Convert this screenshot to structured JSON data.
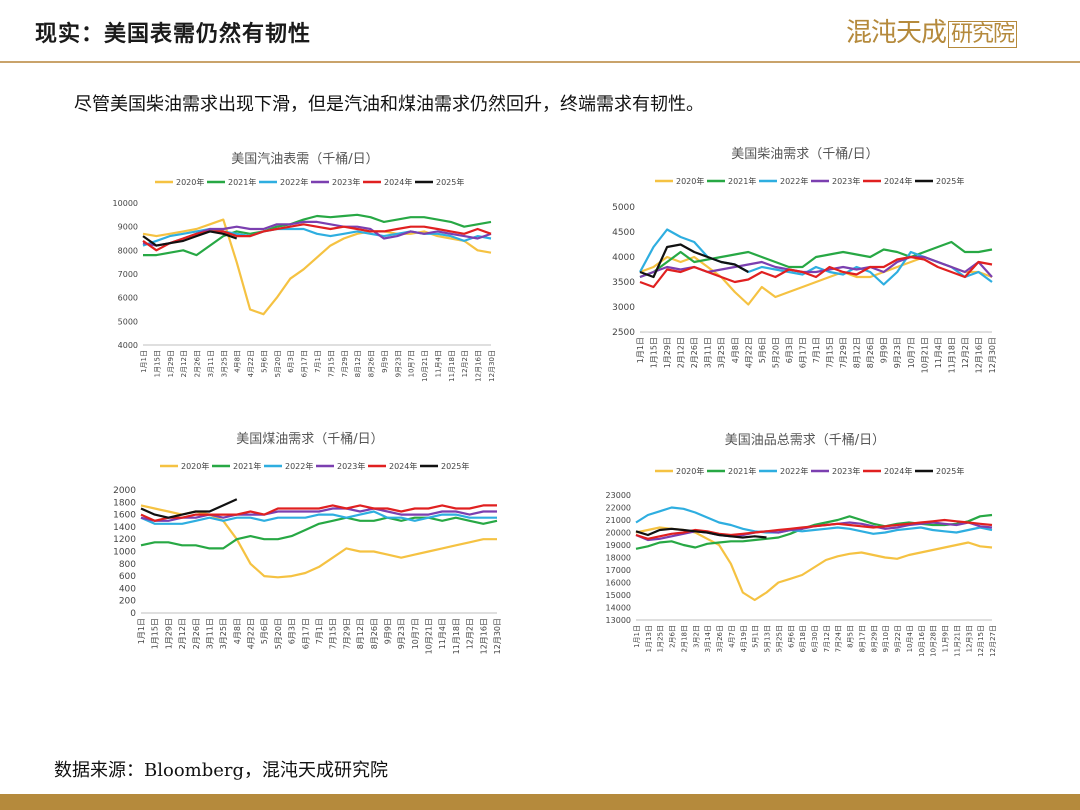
{
  "header": {
    "title": "现实：美国表需仍然有韧性"
  },
  "logo": {
    "text": "混沌天成",
    "boxed": "研究院"
  },
  "summary": "尽管美国柴油需求出现下滑，但是汽油和煤油需求仍然回升，终端需求有韧性。",
  "source": "数据来源：Bloomberg，混沌天成研究院",
  "colors": {
    "accent": "#b58a3c",
    "rule": "#c9a36b"
  },
  "chart_data": [
    {
      "type": "line",
      "title": "美国汽油表需（千桶/日）",
      "ylim": [
        4000,
        10000
      ],
      "yticks": [
        4000,
        5000,
        6000,
        7000,
        8000,
        9000,
        10000
      ],
      "xticks": [
        "1月1日",
        "1月15日",
        "1月29日",
        "2月12日",
        "2月26日",
        "3月11日",
        "3月25日",
        "4月8日",
        "4月22日",
        "5月6日",
        "5月20日",
        "6月3日",
        "6月17日",
        "7月1日",
        "7月15日",
        "7月29日",
        "8月12日",
        "8月26日",
        "9月9日",
        "9月23日",
        "10月7日",
        "10月21日",
        "11月4日",
        "11月18日",
        "12月2日",
        "12月16日",
        "12月30日"
      ],
      "series": [
        {
          "name": "2020年",
          "color": "#f5c242",
          "values": [
            8700,
            8600,
            8700,
            8800,
            8900,
            9100,
            9300,
            7500,
            5500,
            5300,
            6000,
            6800,
            7200,
            7700,
            8200,
            8500,
            8700,
            8800,
            8800,
            8700,
            8700,
            8800,
            8600,
            8500,
            8400,
            8000,
            7900
          ]
        },
        {
          "name": "2021年",
          "color": "#27a844",
          "values": [
            7800,
            7800,
            7900,
            8000,
            7800,
            8200,
            8600,
            8800,
            8700,
            8800,
            9000,
            9100,
            9300,
            9450,
            9400,
            9450,
            9500,
            9400,
            9200,
            9300,
            9400,
            9400,
            9300,
            9200,
            9000,
            9100,
            9200
          ]
        },
        {
          "name": "2022年",
          "color": "#2eaee0",
          "values": [
            8200,
            8400,
            8600,
            8700,
            8800,
            8900,
            8800,
            8700,
            8600,
            8800,
            8900,
            8900,
            8900,
            8700,
            8600,
            8700,
            8800,
            8700,
            8600,
            8700,
            8800,
            8700,
            8700,
            8600,
            8400,
            8600,
            8500
          ]
        },
        {
          "name": "2023年",
          "color": "#7b3fb0",
          "values": [
            8300,
            8200,
            8300,
            8500,
            8700,
            8900,
            8900,
            9000,
            8900,
            8900,
            9100,
            9100,
            9200,
            9200,
            9100,
            9000,
            9000,
            8900,
            8500,
            8600,
            8800,
            8700,
            8800,
            8700,
            8600,
            8500,
            8700
          ]
        },
        {
          "name": "2024年",
          "color": "#e02020",
          "values": [
            8400,
            8000,
            8300,
            8500,
            8700,
            8800,
            8800,
            8600,
            8600,
            8800,
            8900,
            9000,
            9100,
            9000,
            8900,
            9000,
            8900,
            8800,
            8800,
            8900,
            9000,
            9000,
            8900,
            8800,
            8700,
            8900,
            8700
          ]
        },
        {
          "name": "2025年",
          "color": "#111111",
          "values": [
            8600,
            8200,
            8300,
            8400,
            8600,
            8800,
            8700,
            8500
          ]
        }
      ]
    },
    {
      "type": "line",
      "title": "美国柴油需求（千桶/日）",
      "ylim": [
        2500,
        5000
      ],
      "yticks": [
        2500,
        3000,
        3500,
        4000,
        4500,
        5000
      ],
      "xticks": [
        "1月1日",
        "1月15日",
        "1月29日",
        "2月12日",
        "2月26日",
        "3月11日",
        "3月25日",
        "4月8日",
        "4月22日",
        "5月6日",
        "5月20日",
        "6月3日",
        "6月17日",
        "7月1日",
        "7月15日",
        "7月29日",
        "8月12日",
        "8月26日",
        "9月9日",
        "9月23日",
        "10月7日",
        "10月21日",
        "11月4日",
        "11月18日",
        "12月2日",
        "12月16日",
        "12月30日"
      ],
      "series": [
        {
          "name": "2020年",
          "color": "#f5c242",
          "values": [
            3700,
            3800,
            4000,
            3900,
            4000,
            3800,
            3600,
            3300,
            3050,
            3400,
            3200,
            3300,
            3400,
            3500,
            3600,
            3700,
            3600,
            3600,
            3700,
            3800,
            3900,
            4000,
            3900,
            3800,
            3700,
            3700,
            3600
          ]
        },
        {
          "name": "2021年",
          "color": "#27a844",
          "values": [
            3600,
            3700,
            3900,
            4100,
            3900,
            3950,
            4000,
            4050,
            4100,
            4000,
            3900,
            3800,
            3800,
            4000,
            4050,
            4100,
            4050,
            4000,
            4150,
            4100,
            4000,
            4100,
            4200,
            4300,
            4100,
            4100,
            4150
          ]
        },
        {
          "name": "2022年",
          "color": "#2eaee0",
          "values": [
            3700,
            4200,
            4550,
            4400,
            4300,
            4000,
            3900,
            3850,
            3700,
            3800,
            3750,
            3700,
            3650,
            3800,
            3700,
            3650,
            3800,
            3700,
            3450,
            3700,
            4100,
            4000,
            3900,
            3800,
            3600,
            3700,
            3500
          ]
        },
        {
          "name": "2023年",
          "color": "#7b3fb0",
          "values": [
            3600,
            3700,
            3800,
            3750,
            3800,
            3700,
            3750,
            3800,
            3850,
            3900,
            3800,
            3750,
            3700,
            3700,
            3750,
            3800,
            3750,
            3800,
            3700,
            3900,
            4000,
            4000,
            3900,
            3800,
            3700,
            3900,
            3600
          ]
        },
        {
          "name": "2024年",
          "color": "#e02020",
          "values": [
            3500,
            3400,
            3750,
            3700,
            3800,
            3700,
            3600,
            3500,
            3550,
            3700,
            3600,
            3750,
            3700,
            3600,
            3800,
            3700,
            3650,
            3800,
            3800,
            3950,
            4000,
            3950,
            3800,
            3700,
            3600,
            3900,
            3850
          ]
        },
        {
          "name": "2025年",
          "color": "#111111",
          "values": [
            3700,
            3600,
            4200,
            4250,
            4100,
            4000,
            3900,
            3850,
            3700
          ]
        }
      ]
    },
    {
      "type": "line",
      "title": "美国煤油需求（千桶/日）",
      "ylim": [
        0,
        2000
      ],
      "yticks": [
        0,
        200,
        400,
        600,
        800,
        1000,
        1200,
        1400,
        1600,
        1800,
        2000
      ],
      "xticks": [
        "1月1日",
        "1月15日",
        "1月29日",
        "2月12日",
        "2月26日",
        "3月11日",
        "3月25日",
        "4月8日",
        "4月22日",
        "5月6日",
        "5月20日",
        "6月3日",
        "6月17日",
        "7月1日",
        "7月15日",
        "7月29日",
        "8月12日",
        "8月26日",
        "9月9日",
        "9月23日",
        "10月7日",
        "10月21日",
        "11月4日",
        "11月18日",
        "12月2日",
        "12月16日",
        "12月30日"
      ],
      "series": [
        {
          "name": "2020年",
          "color": "#f5c242",
          "values": [
            1750,
            1700,
            1650,
            1600,
            1650,
            1600,
            1500,
            1200,
            800,
            600,
            580,
            600,
            650,
            750,
            900,
            1050,
            1000,
            1000,
            950,
            900,
            950,
            1000,
            1050,
            1100,
            1150,
            1200,
            1200
          ]
        },
        {
          "name": "2021年",
          "color": "#27a844",
          "values": [
            1100,
            1150,
            1150,
            1100,
            1100,
            1050,
            1050,
            1200,
            1250,
            1200,
            1200,
            1250,
            1350,
            1450,
            1500,
            1550,
            1500,
            1500,
            1550,
            1500,
            1550,
            1550,
            1500,
            1550,
            1500,
            1450,
            1500
          ]
        },
        {
          "name": "2022年",
          "color": "#2eaee0",
          "values": [
            1550,
            1450,
            1450,
            1450,
            1500,
            1550,
            1500,
            1550,
            1550,
            1500,
            1550,
            1550,
            1550,
            1600,
            1600,
            1550,
            1600,
            1650,
            1550,
            1550,
            1500,
            1550,
            1600,
            1600,
            1550,
            1550,
            1550
          ]
        },
        {
          "name": "2023年",
          "color": "#7b3fb0",
          "values": [
            1550,
            1500,
            1500,
            1550,
            1550,
            1600,
            1550,
            1600,
            1600,
            1600,
            1650,
            1650,
            1650,
            1650,
            1700,
            1700,
            1650,
            1700,
            1650,
            1600,
            1600,
            1600,
            1650,
            1650,
            1600,
            1650,
            1650
          ]
        },
        {
          "name": "2024年",
          "color": "#e02020",
          "values": [
            1600,
            1500,
            1550,
            1550,
            1600,
            1600,
            1600,
            1600,
            1650,
            1600,
            1700,
            1700,
            1700,
            1700,
            1750,
            1700,
            1750,
            1700,
            1700,
            1650,
            1700,
            1700,
            1750,
            1700,
            1700,
            1750,
            1750
          ]
        },
        {
          "name": "2025年",
          "color": "#111111",
          "values": [
            1700,
            1600,
            1550,
            1600,
            1650,
            1650,
            1750,
            1850
          ]
        }
      ]
    },
    {
      "type": "line",
      "title": "美国油品总需求（千桶/日）",
      "ylim": [
        13000,
        23000
      ],
      "yticks": [
        13000,
        14000,
        15000,
        16000,
        17000,
        18000,
        19000,
        20000,
        21000,
        22000,
        23000
      ],
      "xticks": [
        "1月1日",
        "1月13日",
        "1月25日",
        "2月6日",
        "2月18日",
        "3月2日",
        "3月14日",
        "3月26日",
        "4月7日",
        "4月19日",
        "5月1日",
        "5月13日",
        "5月25日",
        "6月6日",
        "6月18日",
        "6月30日",
        "7月12日",
        "7月24日",
        "8月5日",
        "8月17日",
        "8月29日",
        "9月10日",
        "9月22日",
        "10月4日",
        "10月16日",
        "10月28日",
        "11月9日",
        "11月21日",
        "12月3日",
        "12月15日",
        "12月27日"
      ],
      "series": [
        {
          "name": "2020年",
          "color": "#f5c242",
          "values": [
            20000,
            20200,
            20400,
            20300,
            20200,
            20000,
            19500,
            19000,
            17500,
            15200,
            14600,
            15200,
            16000,
            16300,
            16600,
            17200,
            17800,
            18100,
            18300,
            18400,
            18200,
            18000,
            17900,
            18200,
            18400,
            18600,
            18800,
            19000,
            19200,
            18900,
            18800
          ]
        },
        {
          "name": "2021年",
          "color": "#27a844",
          "values": [
            18700,
            18900,
            19200,
            19300,
            19000,
            18800,
            19100,
            19200,
            19300,
            19300,
            19400,
            19500,
            19600,
            19900,
            20300,
            20600,
            20800,
            21000,
            21300,
            21000,
            20700,
            20500,
            20700,
            20800,
            20700,
            20600,
            20600,
            20700,
            20900,
            21300,
            21400
          ]
        },
        {
          "name": "2022年",
          "color": "#2eaee0",
          "values": [
            20800,
            21400,
            21700,
            22000,
            21900,
            21600,
            21200,
            20800,
            20600,
            20300,
            20100,
            20000,
            20000,
            20200,
            20100,
            20200,
            20300,
            20400,
            20300,
            20100,
            19900,
            20000,
            20200,
            20300,
            20400,
            20200,
            20100,
            20000,
            20200,
            20400,
            20200
          ]
        },
        {
          "name": "2023年",
          "color": "#7b3fb0",
          "values": [
            19800,
            19400,
            19500,
            19700,
            19900,
            20100,
            20000,
            19800,
            19700,
            19800,
            20000,
            20100,
            20000,
            20200,
            20300,
            20500,
            20600,
            20700,
            20800,
            20700,
            20500,
            20300,
            20400,
            20600,
            20700,
            20800,
            20700,
            20600,
            20800,
            20500,
            20400
          ]
        },
        {
          "name": "2024年",
          "color": "#e02020",
          "values": [
            19800,
            19500,
            19700,
            19900,
            20000,
            20200,
            20100,
            19900,
            19800,
            19900,
            20000,
            20100,
            20200,
            20300,
            20400,
            20500,
            20600,
            20700,
            20600,
            20500,
            20400,
            20500,
            20600,
            20700,
            20800,
            20900,
            21000,
            20900,
            20800,
            20700,
            20600
          ]
        },
        {
          "name": "2025年",
          "color": "#111111",
          "values": [
            20100,
            19800,
            20200,
            20300,
            20200,
            20100,
            20000,
            19800,
            19700,
            19600,
            19700,
            19600
          ]
        }
      ]
    }
  ]
}
